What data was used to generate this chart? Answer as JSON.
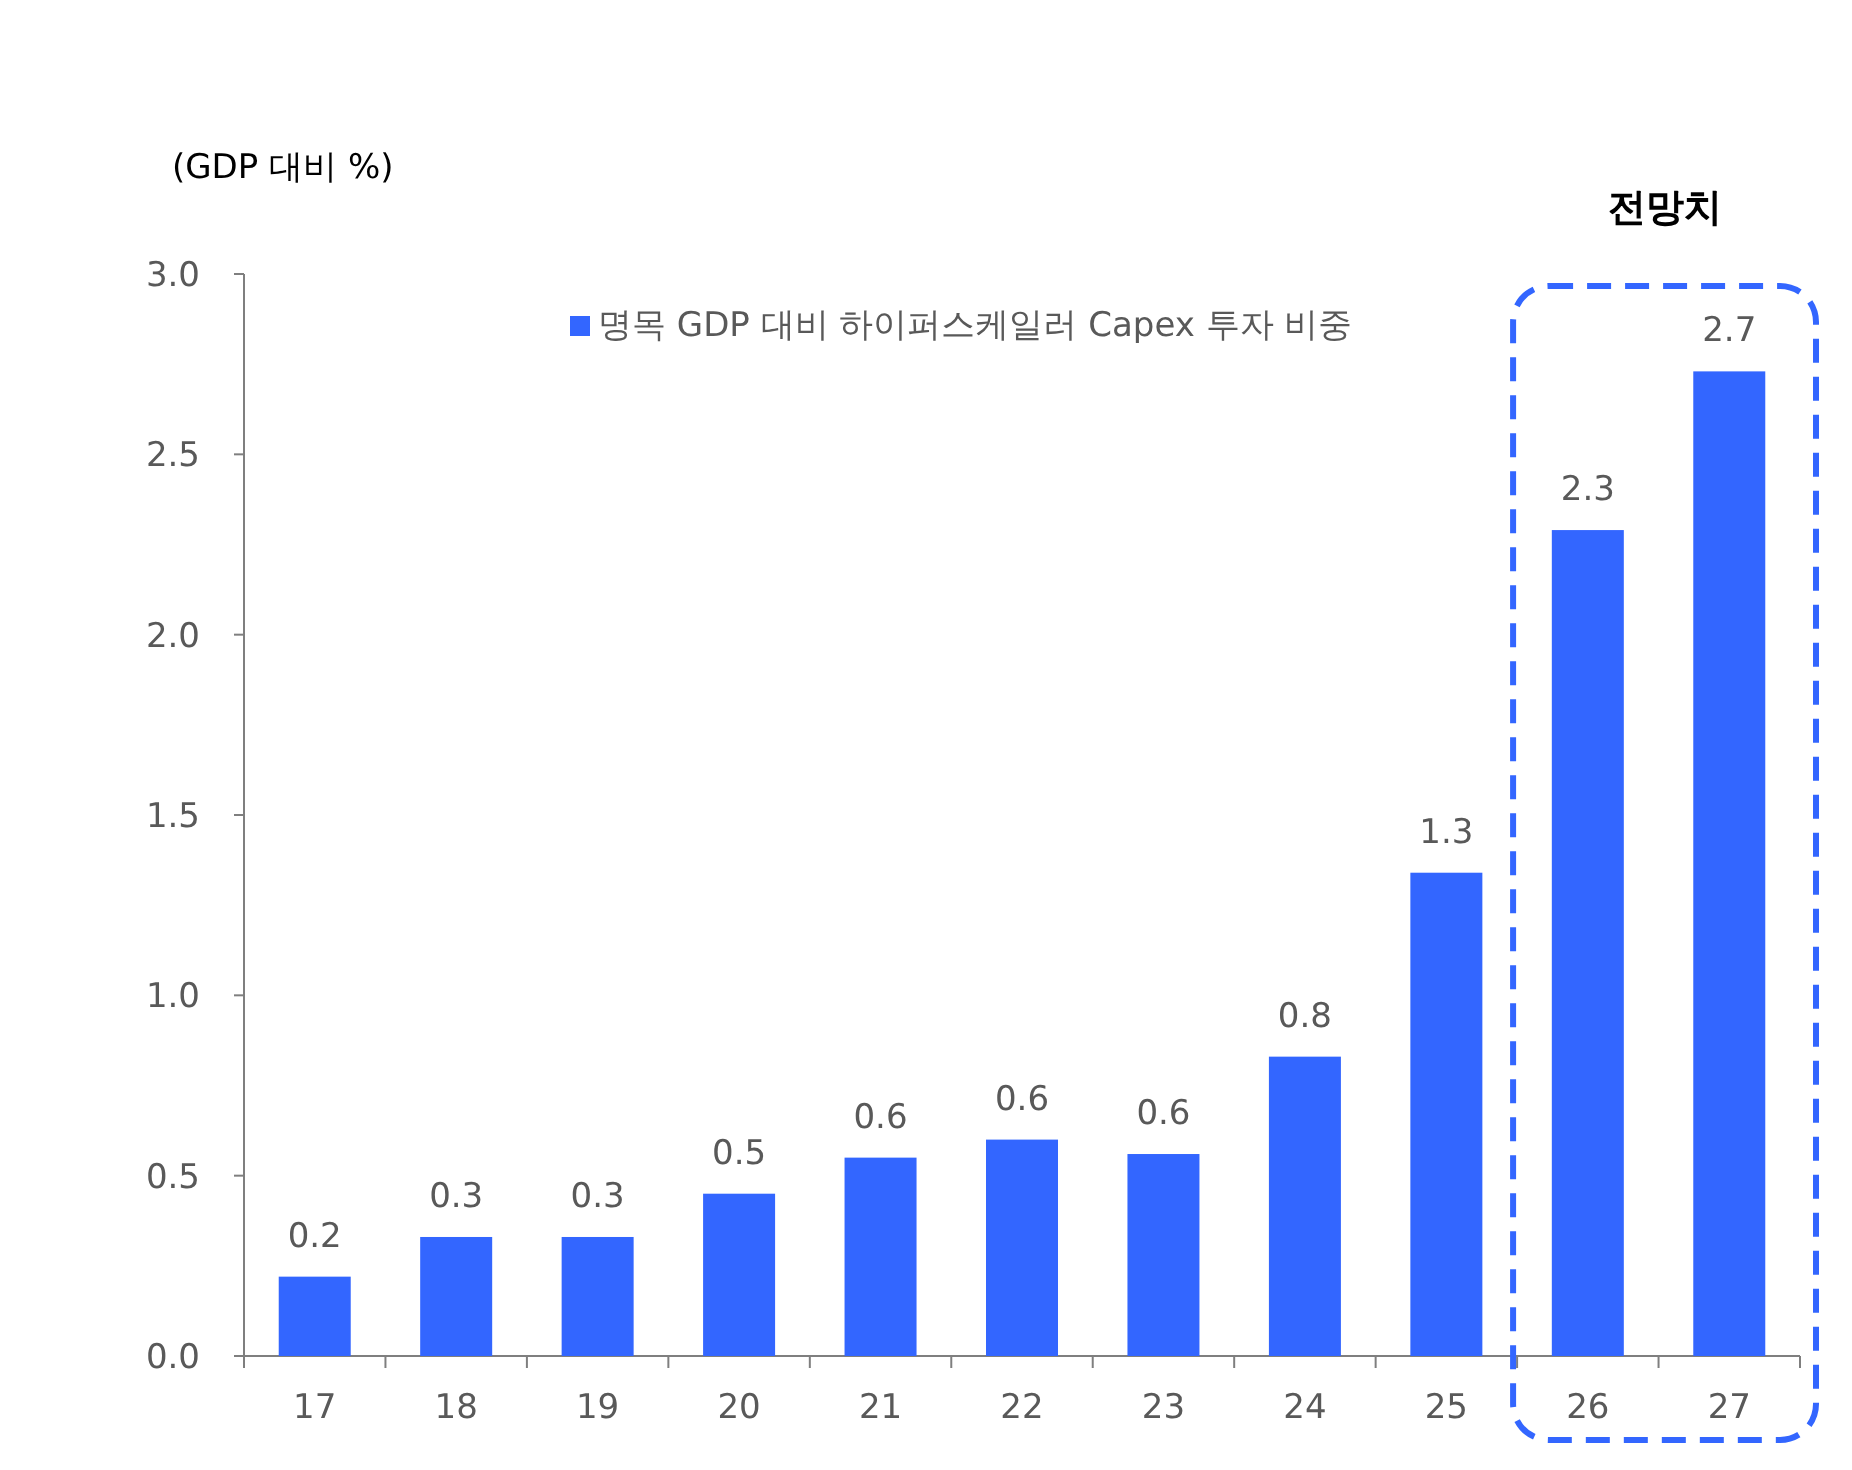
{
  "chart_data": {
    "type": "bar",
    "ylabel": "(GDP 대비 %)",
    "categories": [
      "17",
      "18",
      "19",
      "20",
      "21",
      "22",
      "23",
      "24",
      "25",
      "26",
      "27"
    ],
    "series": [
      {
        "name": "명목 GDP 대비 하이퍼스케일러 Capex 투자 비중",
        "color": "#3366ff",
        "values": [
          0.22,
          0.33,
          0.33,
          0.45,
          0.55,
          0.6,
          0.56,
          0.83,
          1.34,
          2.29,
          2.73
        ],
        "value_labels": [
          "0.2",
          "0.3",
          "0.3",
          "0.5",
          "0.6",
          "0.6",
          "0.6",
          "0.8",
          "1.3",
          "2.3",
          "2.7"
        ]
      }
    ],
    "ylim": [
      0,
      3
    ],
    "yticks": [
      {
        "value": 0,
        "label": "0.0"
      },
      {
        "value": 0.5,
        "label": "0.5"
      },
      {
        "value": 1,
        "label": "1.0"
      },
      {
        "value": 1.5,
        "label": "1.5"
      },
      {
        "value": 2,
        "label": "2.0"
      },
      {
        "value": 2.5,
        "label": "2.5"
      },
      {
        "value": 3,
        "label": "3.0"
      }
    ],
    "annotations": [
      "전망치"
    ],
    "legend": "top",
    "grid": false
  }
}
